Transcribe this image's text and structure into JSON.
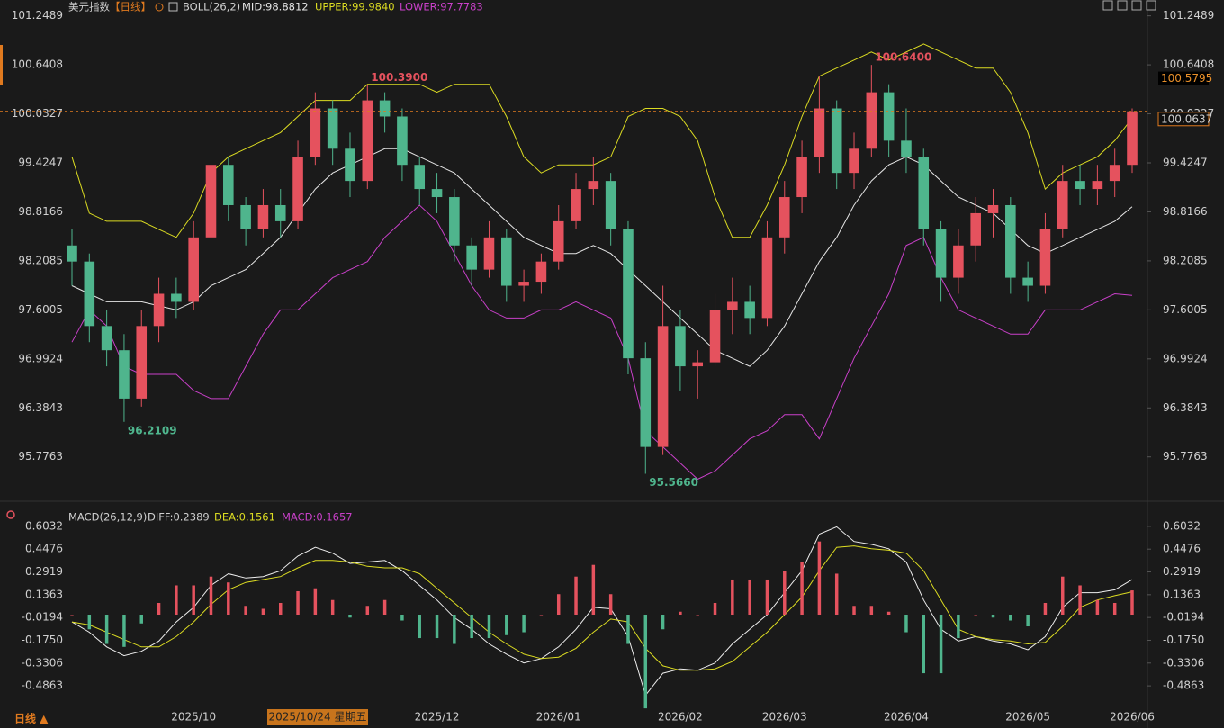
{
  "chart_data": [
    {
      "type": "candlestick",
      "title": "美元指数",
      "period": "【日线】",
      "indicator": "BOLL(26,2)",
      "categories": [
        null,
        null,
        null,
        null,
        null,
        null,
        null,
        "2025/10",
        null,
        null,
        null,
        null,
        null,
        null,
        null,
        null,
        null,
        null,
        null,
        null,
        null,
        "2025/12",
        null,
        null,
        null,
        null,
        null,
        null,
        "2026/01",
        null,
        null,
        null,
        null,
        null,
        null,
        "2026/02",
        null,
        null,
        null,
        null,
        null,
        "2026/03",
        null,
        null,
        null,
        null,
        null,
        null,
        "2026/04",
        null,
        null,
        null,
        null,
        null,
        null,
        "2026/05",
        null,
        null,
        null,
        null,
        null,
        "2026/06"
      ],
      "crosshair_date": "2025/10/24 星期五",
      "period_button": "日线 ▲",
      "up_color": "#e5525e",
      "down_color": "#4fb58d",
      "candles": [
        [
          98.4,
          98.6,
          97.9,
          98.2
        ],
        [
          98.2,
          98.3,
          97.2,
          97.4
        ],
        [
          97.4,
          97.6,
          96.9,
          97.1
        ],
        [
          97.1,
          97.3,
          96.2109,
          96.5
        ],
        [
          96.5,
          97.6,
          96.4,
          97.4
        ],
        [
          97.4,
          98.0,
          97.2,
          97.8
        ],
        [
          97.8,
          98.0,
          97.5,
          97.7
        ],
        [
          97.7,
          98.7,
          97.6,
          98.5
        ],
        [
          98.5,
          99.6,
          98.3,
          99.4
        ],
        [
          99.4,
          99.5,
          98.7,
          98.9
        ],
        [
          98.9,
          99.0,
          98.4,
          98.6
        ],
        [
          98.6,
          99.1,
          98.5,
          98.9
        ],
        [
          98.9,
          99.1,
          98.5,
          98.7
        ],
        [
          98.7,
          99.7,
          98.6,
          99.5
        ],
        [
          99.5,
          100.3,
          99.4,
          100.1
        ],
        [
          100.1,
          100.2,
          99.4,
          99.6
        ],
        [
          99.6,
          99.8,
          99.0,
          99.2
        ],
        [
          99.2,
          100.39,
          99.1,
          100.2
        ],
        [
          100.2,
          100.3,
          99.8,
          100.0
        ],
        [
          100.0,
          100.1,
          99.2,
          99.4
        ],
        [
          99.4,
          99.5,
          98.9,
          99.1
        ],
        [
          99.1,
          99.3,
          98.8,
          99.0
        ],
        [
          99.0,
          99.1,
          98.2,
          98.4
        ],
        [
          98.4,
          98.5,
          97.9,
          98.1
        ],
        [
          98.1,
          98.7,
          98.0,
          98.5
        ],
        [
          98.5,
          98.6,
          97.7,
          97.9
        ],
        [
          97.9,
          98.1,
          97.7,
          97.95
        ],
        [
          97.95,
          98.3,
          97.8,
          98.2
        ],
        [
          98.2,
          98.9,
          98.1,
          98.7
        ],
        [
          98.7,
          99.3,
          98.6,
          99.1
        ],
        [
          99.1,
          99.5,
          98.9,
          99.2
        ],
        [
          99.2,
          99.3,
          98.4,
          98.6
        ],
        [
          98.6,
          98.7,
          96.8,
          97.0
        ],
        [
          97.0,
          97.2,
          95.566,
          95.9
        ],
        [
          95.9,
          97.9,
          95.8,
          97.4
        ],
        [
          97.4,
          97.6,
          96.6,
          96.9
        ],
        [
          96.9,
          97.1,
          96.5,
          96.95
        ],
        [
          96.95,
          97.8,
          96.9,
          97.6
        ],
        [
          97.6,
          98.0,
          97.3,
          97.7
        ],
        [
          97.7,
          97.9,
          97.3,
          97.5
        ],
        [
          97.5,
          98.7,
          97.4,
          98.5
        ],
        [
          98.5,
          99.2,
          98.3,
          99.0
        ],
        [
          99.0,
          99.7,
          98.8,
          99.5
        ],
        [
          99.5,
          100.5,
          99.3,
          100.1
        ],
        [
          100.1,
          100.2,
          99.1,
          99.3
        ],
        [
          99.3,
          99.8,
          99.1,
          99.6
        ],
        [
          99.6,
          100.64,
          99.5,
          100.3
        ],
        [
          100.3,
          100.4,
          99.5,
          99.7
        ],
        [
          99.7,
          100.1,
          99.3,
          99.5
        ],
        [
          99.5,
          99.6,
          98.4,
          98.6
        ],
        [
          98.6,
          98.7,
          97.7,
          98.0
        ],
        [
          98.0,
          98.6,
          97.8,
          98.4
        ],
        [
          98.4,
          99.0,
          98.2,
          98.8
        ],
        [
          98.8,
          99.1,
          98.5,
          98.9
        ],
        [
          98.9,
          99.0,
          97.8,
          98.0
        ],
        [
          98.0,
          98.2,
          97.7,
          97.9
        ],
        [
          97.9,
          98.8,
          97.8,
          98.6
        ],
        [
          98.6,
          99.4,
          98.5,
          99.2
        ],
        [
          99.2,
          99.4,
          98.9,
          99.1
        ],
        [
          99.1,
          99.4,
          98.9,
          99.2
        ],
        [
          99.2,
          99.6,
          99.0,
          99.4
        ],
        [
          99.4,
          100.1,
          99.3,
          100.0637
        ]
      ],
      "series": [
        {
          "label": "MID:98.8812",
          "color": "#e6e6e6",
          "values": [
            97.9,
            97.8,
            97.7,
            97.7,
            97.7,
            97.65,
            97.6,
            97.7,
            97.9,
            98.0,
            98.1,
            98.3,
            98.5,
            98.8,
            99.1,
            99.3,
            99.4,
            99.5,
            99.6,
            99.6,
            99.5,
            99.4,
            99.3,
            99.1,
            98.9,
            98.7,
            98.5,
            98.4,
            98.3,
            98.3,
            98.4,
            98.3,
            98.1,
            97.9,
            97.7,
            97.5,
            97.3,
            97.1,
            97.0,
            96.9,
            97.1,
            97.4,
            97.8,
            98.2,
            98.5,
            98.9,
            99.2,
            99.4,
            99.5,
            99.4,
            99.2,
            99.0,
            98.9,
            98.8,
            98.6,
            98.4,
            98.3,
            98.4,
            98.5,
            98.6,
            98.7,
            98.88
          ]
        },
        {
          "label": "UPPER:99.9840",
          "color": "#dcdc22",
          "values": [
            99.5,
            98.8,
            98.7,
            98.7,
            98.7,
            98.6,
            98.5,
            98.8,
            99.3,
            99.5,
            99.6,
            99.7,
            99.8,
            100.0,
            100.2,
            100.2,
            100.2,
            100.4,
            100.4,
            100.4,
            100.4,
            100.3,
            100.4,
            100.4,
            100.4,
            100.0,
            99.5,
            99.3,
            99.4,
            99.4,
            99.4,
            99.5,
            100.0,
            100.1,
            100.1,
            100.0,
            99.7,
            99.0,
            98.5,
            98.5,
            98.9,
            99.4,
            100.0,
            100.5,
            100.6,
            100.7,
            100.8,
            100.7,
            100.8,
            100.9,
            100.8,
            100.7,
            100.6,
            100.6,
            100.3,
            99.8,
            99.1,
            99.3,
            99.4,
            99.5,
            99.7,
            99.98
          ]
        },
        {
          "label": "LOWER:97.7783",
          "color": "#c940c9",
          "values": [
            97.2,
            97.6,
            97.4,
            96.9,
            96.8,
            96.8,
            96.8,
            96.6,
            96.5,
            96.5,
            96.9,
            97.3,
            97.6,
            97.6,
            97.8,
            98.0,
            98.1,
            98.2,
            98.5,
            98.7,
            98.9,
            98.7,
            98.3,
            97.9,
            97.6,
            97.5,
            97.5,
            97.6,
            97.6,
            97.7,
            97.6,
            97.5,
            97.0,
            96.1,
            95.9,
            95.7,
            95.5,
            95.6,
            95.8,
            96.0,
            96.1,
            96.3,
            96.3,
            96.0,
            96.5,
            97.0,
            97.4,
            97.8,
            98.4,
            98.5,
            98.0,
            97.6,
            97.5,
            97.4,
            97.3,
            97.3,
            97.6,
            97.6,
            97.6,
            97.7,
            97.8,
            97.78
          ]
        }
      ],
      "annotations": [
        {
          "value": 100.39,
          "label": "100.3900"
        },
        {
          "value": 100.64,
          "label": "100.6400"
        },
        {
          "value": 96.2109,
          "label": "96.2109"
        },
        {
          "value": 95.566,
          "label": "95.5660"
        }
      ],
      "last_price": 100.0637,
      "upper_marker": 100.5795,
      "ylim": [
        95.36,
        101.39
      ],
      "yticks": [
        101.2489,
        100.6408,
        100.0327,
        99.4247,
        98.8166,
        98.2085,
        97.6005,
        96.9924,
        96.3843,
        95.7763
      ]
    },
    {
      "type": "macd",
      "title": "MACD(26,12,9)",
      "series": [
        {
          "label": "DIFF:0.2389",
          "color": "#eeeeee",
          "values": [
            -0.05,
            -0.12,
            -0.22,
            -0.28,
            -0.25,
            -0.18,
            -0.05,
            0.05,
            0.2,
            0.28,
            0.25,
            0.26,
            0.3,
            0.4,
            0.46,
            0.42,
            0.35,
            0.36,
            0.37,
            0.3,
            0.2,
            0.1,
            -0.02,
            -0.1,
            -0.2,
            -0.27,
            -0.33,
            -0.3,
            -0.22,
            -0.1,
            0.05,
            0.04,
            -0.15,
            -0.55,
            -0.4,
            -0.37,
            -0.38,
            -0.33,
            -0.2,
            -0.1,
            0.0,
            0.15,
            0.3,
            0.55,
            0.6,
            0.5,
            0.48,
            0.45,
            0.36,
            0.1,
            -0.1,
            -0.18,
            -0.15,
            -0.18,
            -0.2,
            -0.24,
            -0.15,
            0.05,
            0.15,
            0.15,
            0.17,
            0.2389
          ]
        },
        {
          "label": "DEA:0.1561",
          "color": "#dcdc22",
          "values": [
            -0.05,
            -0.07,
            -0.12,
            -0.17,
            -0.22,
            -0.22,
            -0.15,
            -0.05,
            0.07,
            0.17,
            0.22,
            0.24,
            0.26,
            0.32,
            0.37,
            0.37,
            0.36,
            0.33,
            0.32,
            0.32,
            0.28,
            0.18,
            0.08,
            -0.02,
            -0.12,
            -0.2,
            -0.27,
            -0.3,
            -0.29,
            -0.23,
            -0.12,
            -0.03,
            -0.05,
            -0.23,
            -0.35,
            -0.38,
            -0.38,
            -0.37,
            -0.32,
            -0.22,
            -0.12,
            0.0,
            0.12,
            0.3,
            0.46,
            0.47,
            0.45,
            0.44,
            0.42,
            0.3,
            0.1,
            -0.1,
            -0.15,
            -0.17,
            -0.18,
            -0.2,
            -0.19,
            -0.08,
            0.05,
            0.1,
            0.13,
            0.1561
          ]
        },
        {
          "label": "MACD:0.1657",
          "color": "#c940c9",
          "type": "bar",
          "values": [
            0,
            -0.1,
            -0.2,
            -0.22,
            -0.06,
            0.08,
            0.2,
            0.2,
            0.26,
            0.22,
            0.06,
            0.04,
            0.08,
            0.16,
            0.18,
            0.1,
            -0.02,
            0.06,
            0.1,
            -0.04,
            -0.16,
            -0.16,
            -0.2,
            -0.16,
            -0.16,
            -0.14,
            -0.12,
            0.0,
            0.14,
            0.26,
            0.34,
            0.14,
            -0.2,
            -0.64,
            -0.1,
            0.02,
            0.0,
            0.08,
            0.24,
            0.24,
            0.24,
            0.3,
            0.36,
            0.5,
            0.28,
            0.06,
            0.06,
            0.02,
            -0.12,
            -0.4,
            -0.4,
            -0.16,
            0.0,
            -0.02,
            -0.04,
            -0.08,
            0.08,
            0.26,
            0.2,
            0.1,
            0.08,
            0.1657
          ]
        }
      ],
      "ylim": [
        -0.627,
        0.664
      ],
      "yticks": [
        0.6032,
        0.4476,
        0.2919,
        0.1363,
        -0.0194,
        {
          "value": -0.175,
          "label": "-0.1750"
        },
        -0.3306,
        -0.4863
      ]
    }
  ]
}
